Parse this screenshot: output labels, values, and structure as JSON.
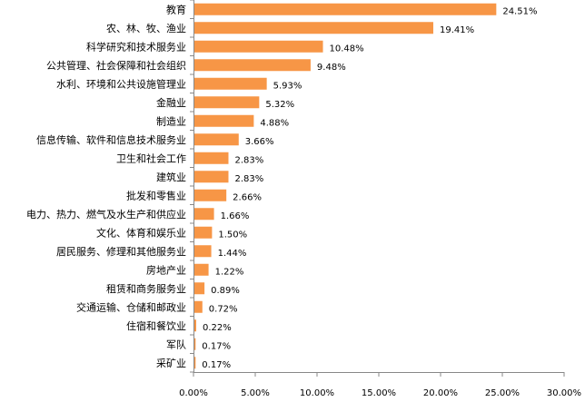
{
  "chart_data": {
    "type": "bar",
    "orientation": "horizontal",
    "categories": [
      "教育",
      "农、林、牧、渔业",
      "科学研究和技术服务业",
      "公共管理、社会保障和社会组织",
      "水利、环境和公共设施管理业",
      "金融业",
      "制造业",
      "信息传输、软件和信息技术服务业",
      "卫生和社会工作",
      "建筑业",
      "批发和零售业",
      "电力、热力、燃气及水生产和供应业",
      "文化、体育和娱乐业",
      "居民服务、修理和其他服务业",
      "房地产业",
      "租赁和商务服务业",
      "交通运输、仓储和邮政业",
      "住宿和餐饮业",
      "军队",
      "采矿业"
    ],
    "values": [
      24.51,
      19.41,
      10.48,
      9.48,
      5.93,
      5.32,
      4.88,
      3.66,
      2.83,
      2.83,
      2.66,
      1.66,
      1.5,
      1.44,
      1.22,
      0.89,
      0.72,
      0.22,
      0.17,
      0.17
    ],
    "value_labels": [
      "24.51%",
      "19.41%",
      "10.48%",
      "9.48%",
      "5.93%",
      "5.32%",
      "4.88%",
      "3.66%",
      "2.83%",
      "2.83%",
      "2.66%",
      "1.66%",
      "1.50%",
      "1.44%",
      "1.22%",
      "0.89%",
      "0.72%",
      "0.22%",
      "0.17%",
      "0.17%"
    ],
    "x_ticks": [
      "0.00%",
      "5.00%",
      "10.00%",
      "15.00%",
      "20.00%",
      "25.00%",
      "30.00%"
    ],
    "xlim": [
      0,
      30
    ],
    "grid": false,
    "legend": "none",
    "colors": {
      "bar": "#F79646",
      "axis": "#888888",
      "text": "#000000"
    }
  }
}
